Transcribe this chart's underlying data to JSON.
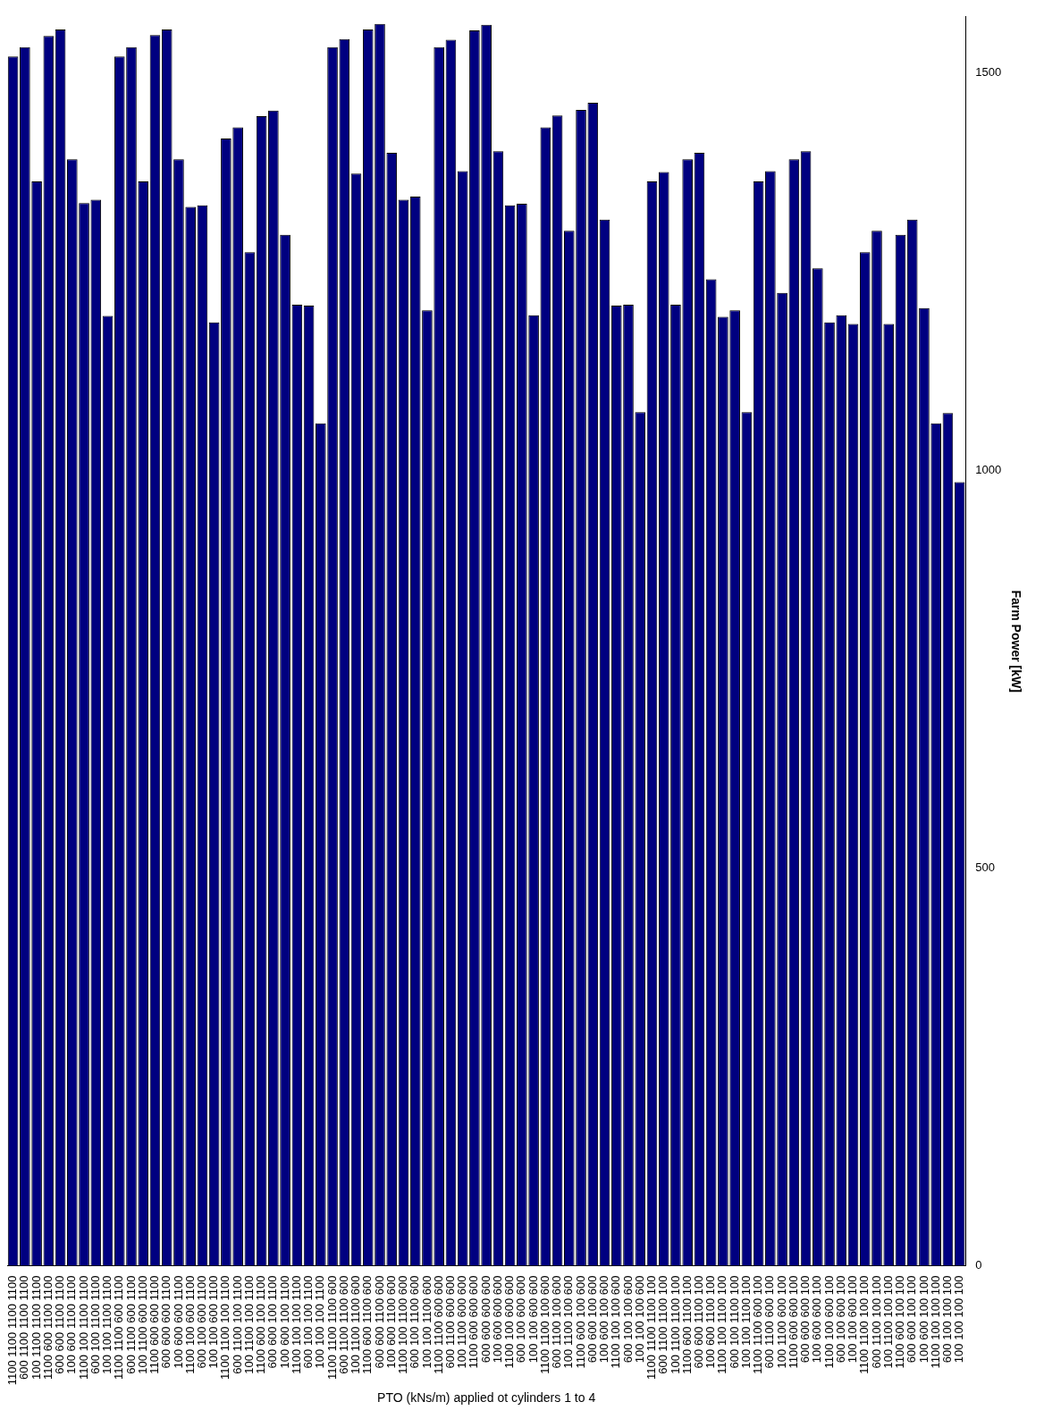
{
  "chart_data": {
    "type": "bar",
    "xlabel": "PTO (kNs/m) applied ot cylinders 1 to 4",
    "ylabel": "Farm Power [kW]",
    "categories": [
      "1100 1100 1100 1100",
      "600 1100 1100 1100",
      "100 1100 1100 1100",
      "1100 600 1100 1100",
      "600 600 1100 1100",
      "100 600 1100 1100",
      "1100 100 1100 1100",
      "600 100 1100 1100",
      "100 100 1100 1100",
      "1100 1100 600 1100",
      "600 1100 600 1100",
      "100 1100 600 1100",
      "1100 600 600 1100",
      "600 600 600 1100",
      "100 600 600 1100",
      "1100 100 600 1100",
      "600 100 600 1100",
      "100 100 600 1100",
      "1100 1100 100 1100",
      "600 1100 100 1100",
      "100 1100 100 1100",
      "1100 600 100 1100",
      "600 600 100 1100",
      "100 600 100 1100",
      "1100 100 100 1100",
      "600 100 100 1100",
      "100 100 100 1100",
      "1100 1100 1100 600",
      "600 1100 1100 600",
      "100 1100 1100 600",
      "1100 600 1100 600",
      "600 600 1100 600",
      "100 600 1100 600",
      "1100 100 1100 600",
      "600 100 1100 600",
      "100 100 1100 600",
      "1100 1100 600 600",
      "600 1100 600 600",
      "100 1100 600 600",
      "1100 600 600 600",
      "600 600 600 600",
      "100 600 600 600",
      "1100 100 600 600",
      "600 100 600 600",
      "100 100 600 600",
      "1100 1100 100 600",
      "600 1100 100 600",
      "100 1100 100 600",
      "1100 600 100 600",
      "600 600 100 600",
      "100 600 100 600",
      "1100 100 100 600",
      "600 100 100 600",
      "100 100 100 600",
      "1100 1100 1100 100",
      "600 1100 1100 100",
      "100 1100 1100 100",
      "1100 600 1100 100",
      "600 600 1100 100",
      "100 600 1100 100",
      "1100 100 1100 100",
      "600 100 1100 100",
      "100 100 1100 100",
      "1100 1100 600 100",
      "600 1100 600 100",
      "100 1100 600 100",
      "1100 600 600 100",
      "600 600 600 100",
      "100 600 600 100",
      "1100 100 600 100",
      "600 100 600 100",
      "100 100 600 100",
      "1100 1100 100 100",
      "600 1100 100 100",
      "100 1100 100 100",
      "1100 600 100 100",
      "600 600 100 100",
      "100 600 100 100",
      "1100 100 100 100",
      "600 100 100 100",
      "100 100 100 100"
    ],
    "values": [
      1520,
      1532,
      1363,
      1546,
      1554,
      1391,
      1336,
      1340,
      1194,
      1520,
      1532,
      1363,
      1547,
      1554,
      1391,
      1331,
      1333,
      1186,
      1417,
      1431,
      1274,
      1445,
      1452,
      1296,
      1208,
      1207,
      1059,
      1532,
      1542,
      1373,
      1554,
      1561,
      1399,
      1340,
      1344,
      1201,
      1532,
      1541,
      1376,
      1553,
      1560,
      1401,
      1333,
      1335,
      1195,
      1431,
      1446,
      1301,
      1453,
      1462,
      1315,
      1207,
      1208,
      1073,
      1363,
      1375,
      1208,
      1391,
      1399,
      1240,
      1193,
      1201,
      1073,
      1363,
      1376,
      1223,
      1391,
      1401,
      1254,
      1186,
      1195,
      1184,
      1274,
      1301,
      1184,
      1296,
      1315,
      1204,
      1059,
      1072,
      985
    ],
    "color": "#000080",
    "ylim": [
      0,
      1570
    ],
    "yticks": [
      0,
      500,
      1000,
      1500
    ],
    "grid": false,
    "legend": false
  }
}
